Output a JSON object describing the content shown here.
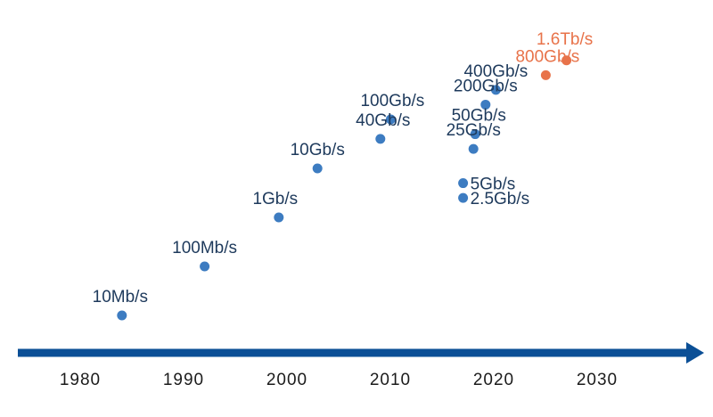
{
  "chart_data": {
    "type": "scatter",
    "title": "",
    "xlabel": "",
    "ylabel": "",
    "xlim": [
      1972,
      2039
    ],
    "x_ticks": [
      "1980",
      "1990",
      "2000",
      "2010",
      "2020",
      "2030"
    ],
    "grid": false,
    "legend": "none",
    "y_scale": "log",
    "y_unit": "bits per second",
    "colors": {
      "existing": "#3d7cc1",
      "future": "#e8734a",
      "label_existing": "#1e3a5c",
      "label_future": "#e8734a",
      "axis": "#0b4f96"
    },
    "series": [
      {
        "status": "existing",
        "points": [
          {
            "x": 1983,
            "y": 10000000,
            "label": "10Mb/s"
          },
          {
            "x": 1991,
            "y": 100000000,
            "label": "100Mb/s"
          },
          {
            "x": 1998,
            "y": 1000000000,
            "label": "1Gb/s"
          },
          {
            "x": 2002,
            "y": 10000000000,
            "label": "10Gb/s"
          },
          {
            "x": 2009,
            "y": 100000000000,
            "label": "100Gb/s"
          },
          {
            "x": 2008,
            "y": 40000000000,
            "label": "40Gb/s"
          },
          {
            "x": 2016,
            "y": 2500000000,
            "label": "2.5Gb/s"
          },
          {
            "x": 2016,
            "y": 5000000000,
            "label": "5Gb/s"
          },
          {
            "x": 2017,
            "y": 25000000000,
            "label": "25Gb/s"
          },
          {
            "x": 2017,
            "y": 50000000000,
            "label": "50Gb/s"
          },
          {
            "x": 2018,
            "y": 200000000000,
            "label": "200Gb/s"
          },
          {
            "x": 2019,
            "y": 400000000000,
            "label": "400Gb/s"
          }
        ]
      },
      {
        "status": "future",
        "points": [
          {
            "x": 2024,
            "y": 800000000000,
            "label": "800Gb/s"
          },
          {
            "x": 2026,
            "y": 1600000000000,
            "label": "1.6Tb/s"
          }
        ]
      }
    ]
  }
}
